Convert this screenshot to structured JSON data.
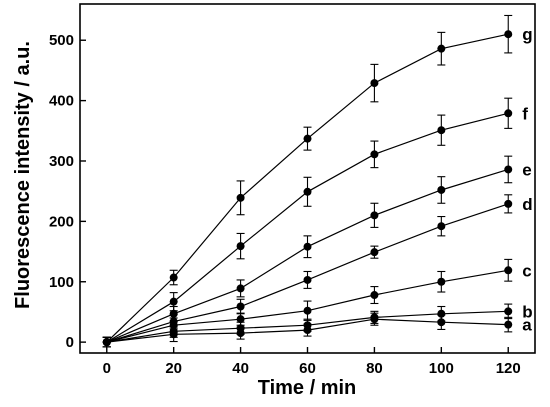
{
  "chart_data": {
    "type": "line",
    "xlabel": "Time / min",
    "ylabel": "Fluorescence intensity / a.u.",
    "xlim": [
      -8,
      128
    ],
    "ylim": [
      -18,
      560
    ],
    "x_ticks": [
      0,
      20,
      40,
      60,
      80,
      100,
      120
    ],
    "y_ticks": [
      0,
      100,
      200,
      300,
      400,
      500
    ],
    "grid": false,
    "marker": "filled-circle",
    "error_bars": true,
    "x": [
      0,
      20,
      40,
      60,
      80,
      100,
      120
    ],
    "series": [
      {
        "name": "a",
        "values": [
          0,
          13,
          15,
          20,
          38,
          33,
          29
        ],
        "errors": [
          8,
          12,
          10,
          10,
          10,
          12,
          12
        ]
      },
      {
        "name": "b",
        "values": [
          0,
          18,
          23,
          28,
          41,
          47,
          51
        ],
        "errors": [
          8,
          10,
          10,
          10,
          10,
          12,
          12
        ]
      },
      {
        "name": "c",
        "values": [
          0,
          28,
          38,
          52,
          78,
          100,
          119
        ],
        "errors": [
          8,
          12,
          10,
          16,
          14,
          17,
          18
        ]
      },
      {
        "name": "d",
        "values": [
          0,
          34,
          59,
          103,
          149,
          192,
          229
        ],
        "errors": [
          8,
          12,
          12,
          14,
          10,
          16,
          15
        ]
      },
      {
        "name": "e",
        "values": [
          0,
          47,
          89,
          158,
          210,
          252,
          286
        ],
        "errors": [
          8,
          12,
          14,
          18,
          20,
          22,
          22
        ]
      },
      {
        "name": "f",
        "values": [
          0,
          67,
          159,
          249,
          311,
          351,
          379
        ],
        "errors": [
          8,
          15,
          21,
          24,
          22,
          25,
          25
        ]
      },
      {
        "name": "g",
        "values": [
          0,
          107,
          239,
          337,
          429,
          486,
          510
        ],
        "errors": [
          8,
          12,
          28,
          19,
          31,
          27,
          31
        ]
      }
    ]
  }
}
